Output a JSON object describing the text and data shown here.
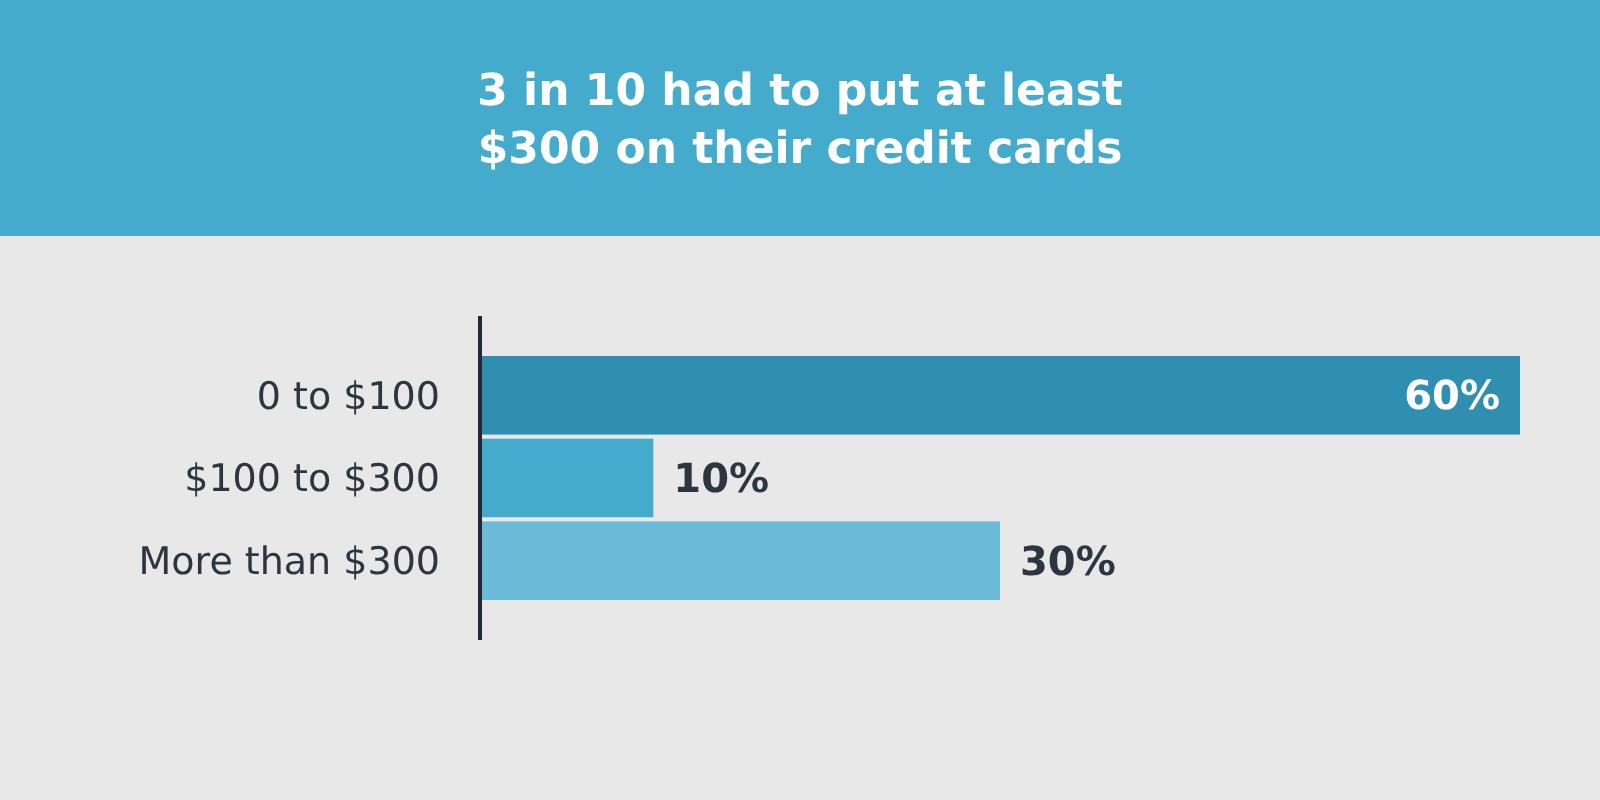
{
  "chart_data": {
    "type": "bar",
    "orientation": "horizontal",
    "title": "3 in 10 had to put at least $300 on their credit cards",
    "categories": [
      "0 to $100",
      "$100 to $300",
      "More than $300"
    ],
    "values": [
      60,
      10,
      30
    ],
    "colors": [
      "#2e8fb1",
      "#44abcd",
      "#6bbbd8"
    ],
    "value_labels": [
      "60%",
      "10%",
      "30%"
    ]
  }
}
